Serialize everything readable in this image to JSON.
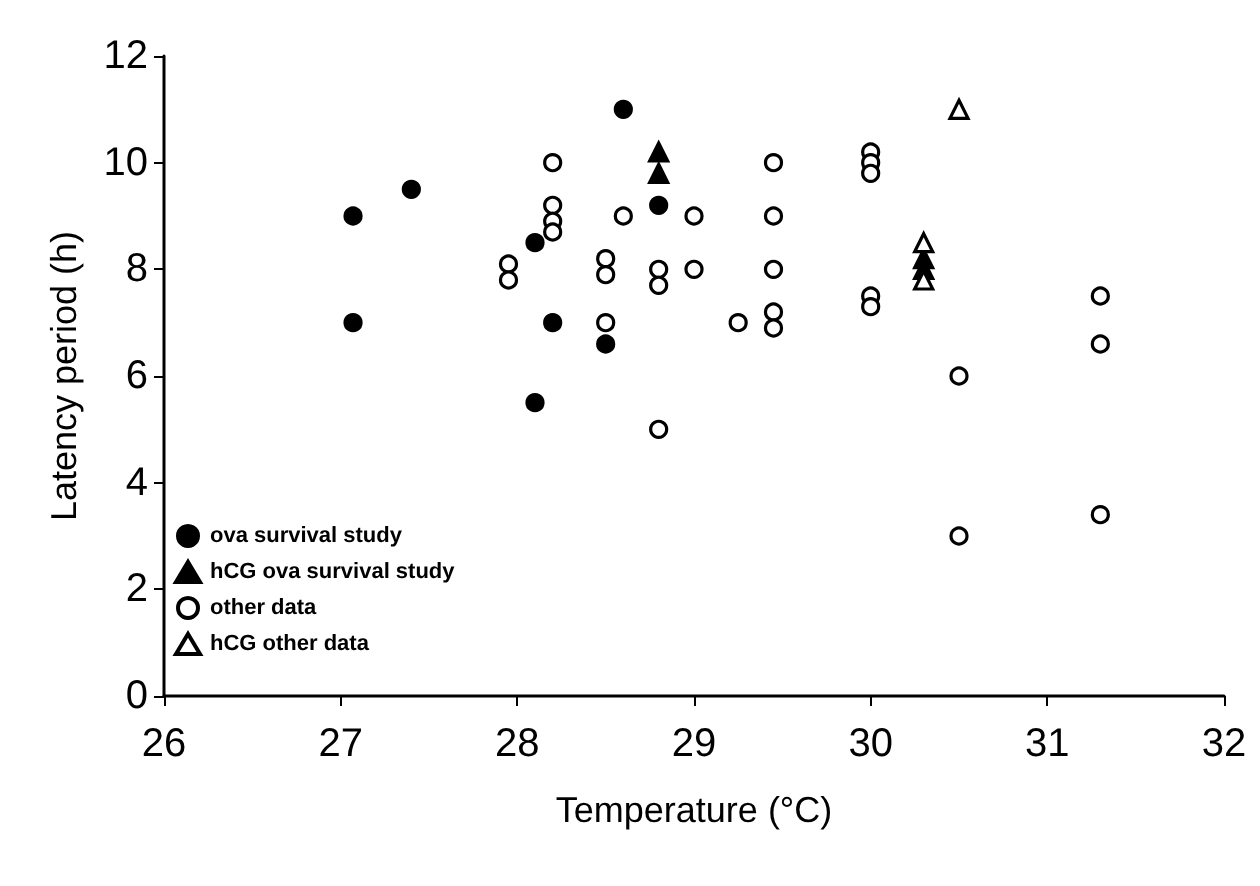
{
  "chart_data": {
    "type": "scatter",
    "xlabel": "Temperature (°C)",
    "ylabel": "Latency period (h)",
    "xlim": [
      26,
      32
    ],
    "xticks": [
      26,
      27,
      28,
      29,
      30,
      31,
      32
    ],
    "ylim": [
      0,
      12
    ],
    "yticks": [
      0,
      2,
      4,
      6,
      8,
      10,
      12
    ],
    "grid": false,
    "legend": "bottom left",
    "series": [
      {
        "name": "ova survival study",
        "color": "#000000",
        "marker": "circle",
        "x": [
          27.07,
          27.07,
          27.4,
          28.1,
          28.2,
          28.1,
          28.5,
          28.6,
          28.8
        ],
        "values": [
          9.0,
          7.0,
          9.5,
          8.5,
          7.0,
          5.5,
          6.6,
          11.0,
          9.2
        ]
      },
      {
        "name": "hCG ova survival study",
        "color": "#000000",
        "marker": "triangle",
        "x": [
          28.8,
          28.8,
          30.3,
          30.3
        ],
        "values": [
          10.2,
          9.8,
          8.2,
          8.0
        ]
      },
      {
        "name": "other data",
        "color": "#ffffff",
        "marker": "circle",
        "x": [
          28.2,
          28.2,
          28.2,
          28.2,
          27.95,
          27.95,
          28.5,
          28.5,
          28.5,
          28.6,
          28.8,
          28.8,
          28.8,
          29.0,
          29.0,
          29.25,
          29.45,
          29.45,
          29.45,
          29.45,
          29.45,
          30.0,
          30.0,
          30.0,
          30.0,
          30.0,
          30.5,
          30.5,
          31.3,
          31.3,
          31.3
        ],
        "values": [
          10.0,
          9.2,
          8.9,
          8.7,
          8.1,
          7.8,
          8.2,
          7.9,
          7.0,
          9.0,
          8.0,
          7.7,
          5.0,
          9.0,
          8.0,
          7.0,
          10.0,
          9.0,
          8.0,
          7.2,
          6.9,
          10.2,
          10.0,
          9.8,
          7.5,
          7.3,
          6.0,
          3.0,
          7.5,
          6.6,
          3.4
        ]
      },
      {
        "name": "hCG other data",
        "color": "#ffffff",
        "marker": "triangle",
        "x": [
          30.5,
          30.3,
          30.3
        ],
        "values": [
          11.0,
          8.5,
          7.8
        ]
      }
    ]
  }
}
